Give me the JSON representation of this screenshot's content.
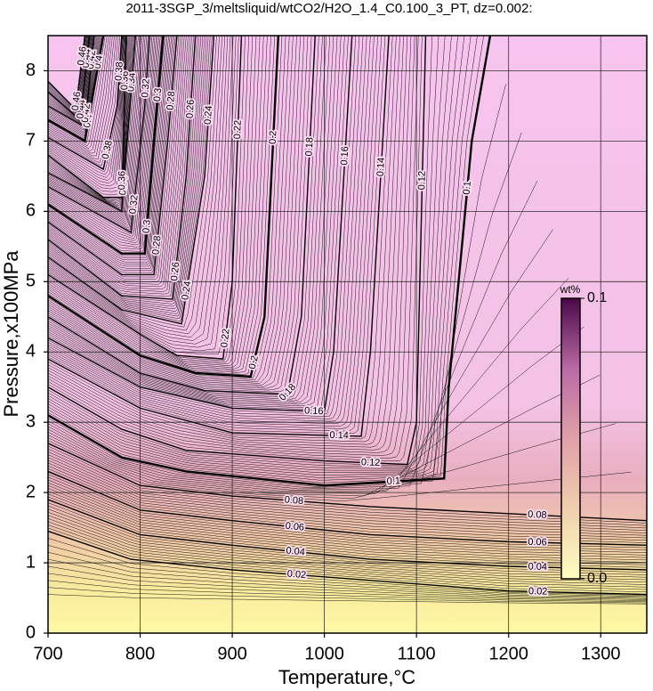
{
  "chart_data": {
    "type": "contour",
    "title": "2011-3SGP_3/meltsliquid/wtCO2/H2O_1.4_C0.100_3_PT, dz=0.002:",
    "xlabel": "Temperature,°C",
    "ylabel": "Pressure,x100MPa",
    "xlim": [
      700,
      1350
    ],
    "ylim": [
      0,
      8.5
    ],
    "xticks": [
      700,
      800,
      900,
      1000,
      1100,
      1200,
      1300
    ],
    "yticks": [
      0,
      1,
      2,
      3,
      4,
      5,
      6,
      7,
      8
    ],
    "grid": true,
    "colorbar": {
      "title": "wt%",
      "lim": [
        0,
        0.1
      ],
      "ticks": [
        {
          "value": 0,
          "label": "0.0"
        },
        0.1
      ]
    },
    "contours": [
      {
        "level": 0.02,
        "x": [
          700,
          790,
          900,
          1050,
          1200,
          1350
        ],
        "y": [
          1.45,
          1.05,
          0.9,
          0.75,
          0.6,
          0.55
        ]
      },
      {
        "level": 0.04,
        "x": [
          700,
          800,
          900,
          1050,
          1200,
          1350
        ],
        "y": [
          1.9,
          1.4,
          1.25,
          1.05,
          0.95,
          0.9
        ]
      },
      {
        "level": 0.06,
        "x": [
          700,
          800,
          900,
          1050,
          1200,
          1350
        ],
        "y": [
          2.3,
          1.75,
          1.6,
          1.4,
          1.3,
          1.25
        ]
      },
      {
        "level": 0.08,
        "x": [
          700,
          800,
          900,
          1050,
          1200,
          1350
        ],
        "y": [
          2.7,
          2.1,
          1.95,
          1.8,
          1.7,
          1.6
        ]
      },
      {
        "level": 0.1,
        "x": [
          700,
          780,
          850,
          1000,
          1130,
          1135,
          1160,
          1180
        ],
        "y": [
          3.1,
          2.5,
          2.3,
          2.1,
          2.2,
          3.5,
          7,
          8.5
        ]
      },
      {
        "level": 0.12,
        "x": [
          700,
          780,
          850,
          1000,
          1090,
          1100,
          1110
        ],
        "y": [
          3.5,
          2.9,
          2.6,
          2.45,
          2.4,
          3,
          8.5
        ]
      },
      {
        "level": 0.14,
        "x": [
          700,
          800,
          900,
          1040,
          1050,
          1070
        ],
        "y": [
          3.9,
          3.2,
          2.85,
          2.8,
          4,
          8.5
        ]
      },
      {
        "level": 0.16,
        "x": [
          700,
          800,
          900,
          1000,
          1010,
          1030
        ],
        "y": [
          4.2,
          3.5,
          3.2,
          3.15,
          4,
          8.5
        ]
      },
      {
        "level": 0.18,
        "x": [
          700,
          800,
          870,
          960,
          975,
          990
        ],
        "y": [
          4.5,
          3.7,
          3.45,
          3.4,
          4.5,
          8.5
        ]
      },
      {
        "level": 0.2,
        "x": [
          700,
          800,
          860,
          920,
          935,
          950
        ],
        "y": [
          4.8,
          3.95,
          3.7,
          3.65,
          4.5,
          8.5
        ]
      },
      {
        "level": 0.22,
        "x": [
          700,
          800,
          840,
          890,
          900,
          910
        ],
        "y": [
          5.1,
          4.25,
          3.95,
          3.9,
          5,
          8.5
        ]
      },
      {
        "level": 0.24,
        "x": [
          700,
          780,
          845,
          870,
          880
        ],
        "y": [
          5.35,
          4.6,
          4.4,
          6.5,
          8.5
        ]
      },
      {
        "level": 0.26,
        "x": [
          700,
          780,
          835,
          850,
          860
        ],
        "y": [
          5.6,
          4.8,
          4.75,
          6.5,
          8.5
        ]
      },
      {
        "level": 0.28,
        "x": [
          700,
          780,
          815,
          830,
          840
        ],
        "y": [
          5.85,
          5.1,
          5.1,
          7,
          8.5
        ]
      },
      {
        "level": 0.3,
        "x": [
          700,
          780,
          805,
          815,
          825
        ],
        "y": [
          6.1,
          5.4,
          5.4,
          7,
          8.5
        ]
      },
      {
        "level": 0.32,
        "x": [
          700,
          790,
          805,
          810
        ],
        "y": [
          6.35,
          5.7,
          7.5,
          8.5
        ]
      },
      {
        "level": 0.34,
        "x": [
          700,
          780,
          795
        ],
        "y": [
          6.55,
          6.0,
          8.5
        ]
      },
      {
        "level": 0.36,
        "x": [
          700,
          760,
          780,
          785
        ],
        "y": [
          6.8,
          6.2,
          6.2,
          8.5
        ]
      },
      {
        "level": 0.38,
        "x": [
          700,
          760,
          775,
          780
        ],
        "y": [
          7.05,
          6.6,
          7.5,
          8.5
        ]
      },
      {
        "level": 0.4,
        "x": [
          700,
          740,
          760
        ],
        "y": [
          7.3,
          7.0,
          8.5
        ]
      },
      {
        "level": 0.42,
        "x": [
          700,
          740,
          750
        ],
        "y": [
          7.5,
          7.2,
          8.5
        ]
      },
      {
        "level": 0.44,
        "x": [
          700,
          735,
          745
        ],
        "y": [
          7.7,
          7.3,
          8.5
        ]
      },
      {
        "level": 0.46,
        "x": [
          700,
          730,
          740
        ],
        "y": [
          7.85,
          7.45,
          8.5
        ]
      }
    ]
  }
}
